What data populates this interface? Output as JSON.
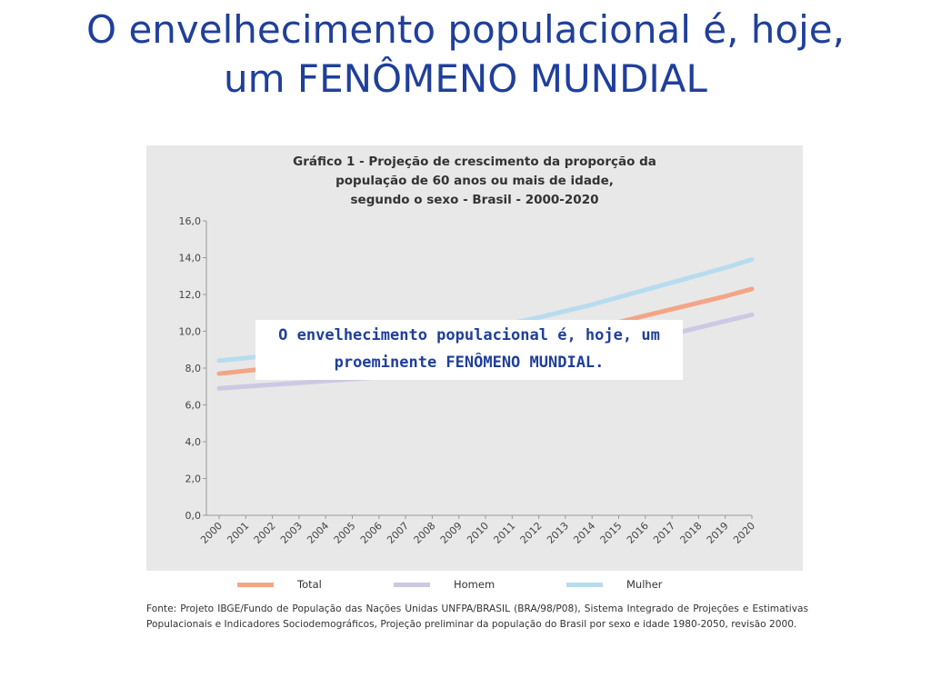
{
  "slide": {
    "title_line1": "O envelhecimento populacional é, hoje,",
    "title_line2": "um FENÔMENO MUNDIAL"
  },
  "callout": {
    "line1": "O envelhecimento populacional é, hoje, um",
    "line2": "proeminente FENÔMENO MUNDIAL."
  },
  "source_note": "Fonte: Projeto IBGE/Fundo de População das Nações Unidas UNFPA/BRASIL (BRA/98/P08), Sistema Integrado de Projeções e Estimativas Populacionais e Indicadores Sociodemográficos, Projeção preliminar da população do Brasil por sexo e idade 1980-2050, revisão 2000.",
  "chart_data": {
    "type": "line",
    "title_lines": [
      "Gráfico 1 - Projeção de crescimento da proporção da",
      "população de 60 anos ou mais de idade,",
      "segundo o sexo - Brasil - 2000-2020"
    ],
    "x": [
      "2000",
      "2001",
      "2002",
      "2003",
      "2004",
      "2005",
      "2006",
      "2007",
      "2008",
      "2009",
      "2010",
      "2011",
      "2012",
      "2013",
      "2014",
      "2015",
      "2016",
      "2017",
      "2018",
      "2019",
      "2020"
    ],
    "y_ticks": [
      "0,0",
      "2,0",
      "4,0",
      "6,0",
      "8,0",
      "10,0",
      "12,0",
      "14,0",
      "16,0"
    ],
    "ylim": [
      0,
      16
    ],
    "grid": false,
    "legend_position": "bottom",
    "series": [
      {
        "name": "Total",
        "color": "#f4a586",
        "values": [
          7.7,
          7.85,
          8.0,
          8.15,
          8.3,
          8.45,
          8.6,
          8.75,
          8.9,
          9.05,
          9.2,
          9.4,
          9.6,
          9.85,
          10.15,
          10.5,
          10.85,
          11.2,
          11.55,
          11.9,
          12.3
        ]
      },
      {
        "name": "Homem",
        "color": "#cdc8e4",
        "values": [
          6.9,
          7.0,
          7.1,
          7.2,
          7.3,
          7.4,
          7.5,
          7.6,
          7.7,
          7.8,
          7.9,
          8.05,
          8.25,
          8.5,
          8.8,
          9.15,
          9.5,
          9.85,
          10.2,
          10.55,
          10.9
        ]
      },
      {
        "name": "Mulher",
        "color": "#b7dcef",
        "values": [
          8.4,
          8.55,
          8.7,
          8.85,
          9.0,
          9.2,
          9.4,
          9.6,
          9.8,
          10.0,
          10.2,
          10.45,
          10.75,
          11.1,
          11.45,
          11.85,
          12.25,
          12.65,
          13.05,
          13.45,
          13.9
        ]
      }
    ]
  }
}
